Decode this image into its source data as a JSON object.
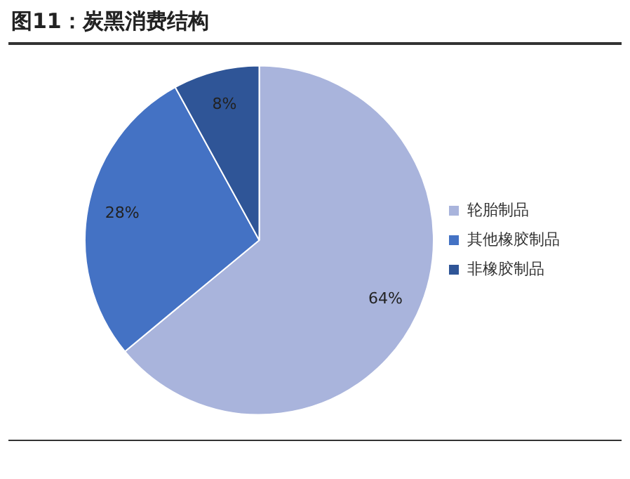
{
  "chart_data": {
    "type": "pie",
    "title": "图11：炭黑消费结构",
    "categories": [
      "轮胎制品",
      "其他橡胶制品",
      "非橡胶制品"
    ],
    "values": [
      64,
      28,
      8
    ],
    "colors": [
      "#a9b4dc",
      "#4472c4",
      "#2f5597"
    ],
    "value_labels": [
      "64%",
      "28%",
      "8%"
    ],
    "legend": "right"
  }
}
